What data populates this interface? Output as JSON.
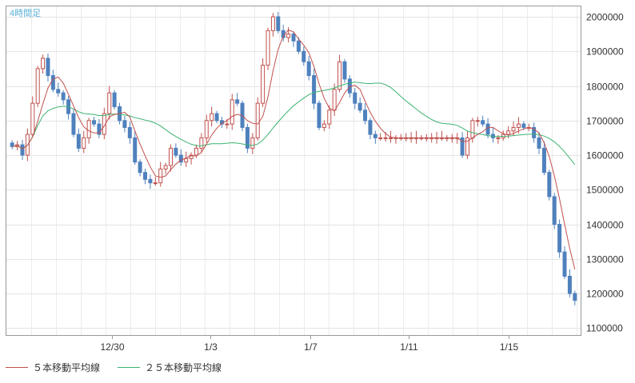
{
  "chart_data": {
    "type": "candlestick",
    "timeframe_label": "4時間足",
    "x_tick_labels": [
      "12/30",
      "1/3",
      "1/7",
      "1/11",
      "1/15"
    ],
    "y_tick_labels": [
      "1100000",
      "1200000",
      "1300000",
      "1400000",
      "1500000",
      "1600000",
      "1700000",
      "1800000",
      "1900000",
      "2000000"
    ],
    "ylim": [
      1080000,
      2030000
    ],
    "grid": true,
    "legend_position": "bottom-left",
    "series": [
      {
        "name": "５本移動平均線",
        "color": "#c0504d"
      },
      {
        "name": "２５本移動平均線",
        "color": "#3cb371"
      }
    ],
    "up_color": "#c0504d",
    "down_color": "#4f81bd",
    "closes": [
      1625000,
      1630000,
      1600000,
      1660000,
      1750000,
      1850000,
      1880000,
      1830000,
      1790000,
      1780000,
      1760000,
      1720000,
      1660000,
      1620000,
      1650000,
      1700000,
      1690000,
      1660000,
      1720000,
      1780000,
      1740000,
      1700000,
      1680000,
      1650000,
      1580000,
      1550000,
      1530000,
      1520000,
      1520000,
      1560000,
      1570000,
      1620000,
      1600000,
      1580000,
      1590000,
      1600000,
      1620000,
      1650000,
      1700000,
      1720000,
      1700000,
      1690000,
      1690000,
      1760000,
      1750000,
      1680000,
      1620000,
      1650000,
      1750000,
      1860000,
      1960000,
      2000000,
      1960000,
      1940000,
      1950000,
      1930000,
      1900000,
      1870000,
      1830000,
      1750000,
      1680000,
      1690000,
      1730000,
      1790000,
      1870000,
      1820000,
      1780000,
      1750000,
      1730000,
      1700000,
      1660000,
      1650000,
      1650000,
      1650000,
      1650000,
      1650000,
      1650000,
      1650000,
      1650000,
      1650000,
      1650000,
      1650000,
      1650000,
      1650000,
      1650000,
      1650000,
      1650000,
      1650000,
      1600000,
      1650000,
      1700000,
      1700000,
      1690000,
      1660000,
      1650000,
      1650000,
      1660000,
      1670000,
      1680000,
      1690000,
      1680000,
      1680000,
      1650000,
      1620000,
      1550000,
      1480000,
      1400000,
      1320000,
      1250000,
      1200000,
      1180000
    ]
  }
}
